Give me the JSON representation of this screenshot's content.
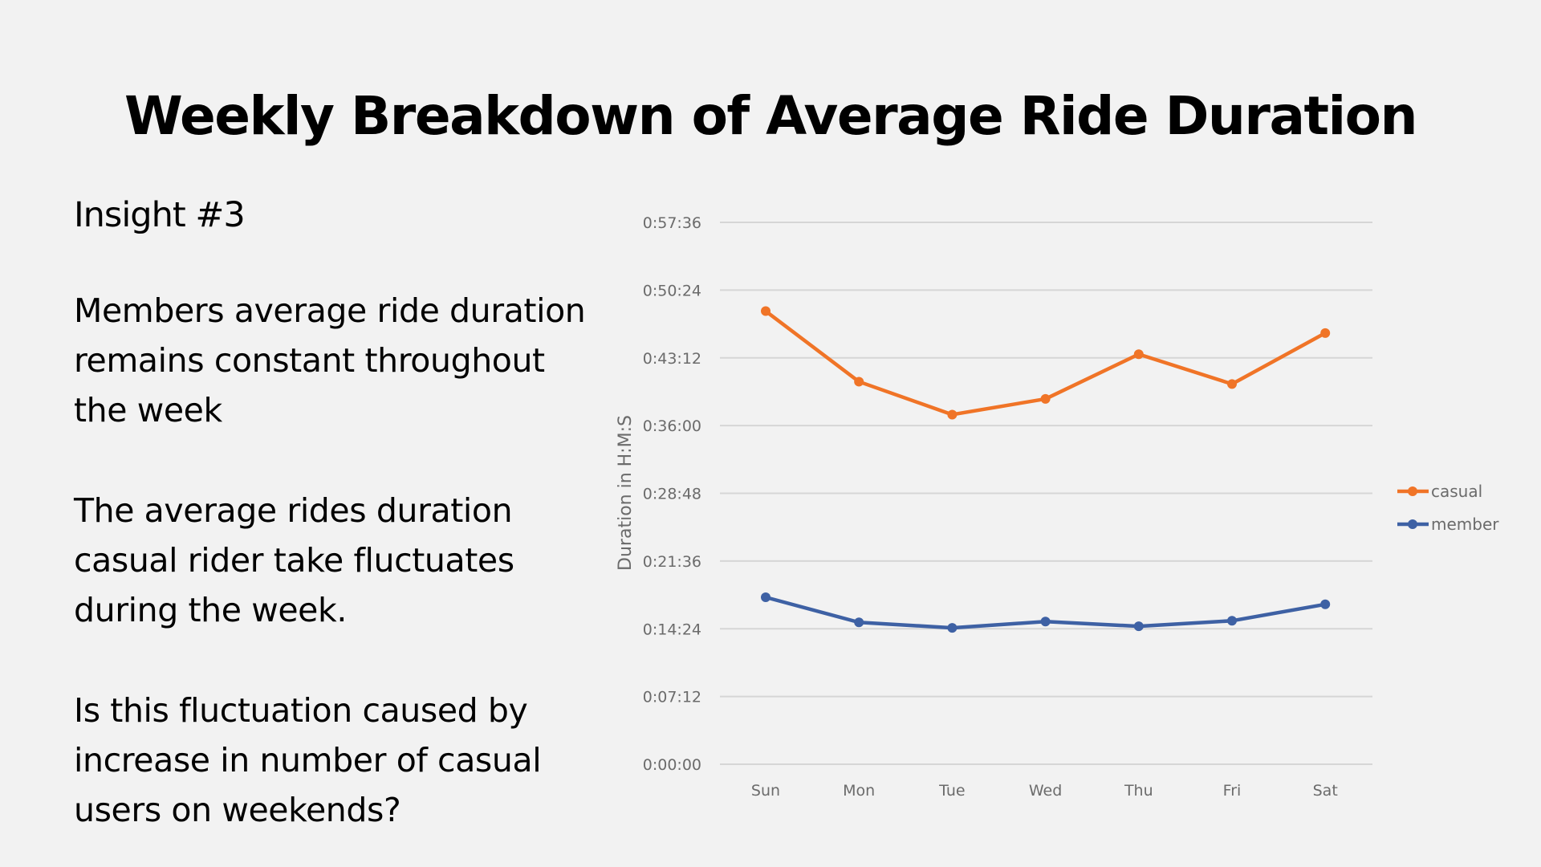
{
  "slide": {
    "title": "Weekly Breakdown of Average Ride Duration",
    "insight_heading": "Insight #3",
    "paragraphs": [
      "Members average ride duration remains constant throughout the week",
      "The average rides duration casual rider take fluctuates during the week.",
      "Is this fluctuation caused by increase in number of casual users on weekends?"
    ]
  },
  "chart_data": {
    "type": "line",
    "title": "",
    "xlabel": "",
    "ylabel": "Duration in H:M:S",
    "categories": [
      "Sun",
      "Mon",
      "Tue",
      "Wed",
      "Thu",
      "Fri",
      "Sat"
    ],
    "y_unit": "seconds",
    "ylim": [
      0,
      3456
    ],
    "y_ticks": [
      0,
      432,
      864,
      1296,
      1728,
      2160,
      2592,
      3024,
      3456
    ],
    "y_tick_labels": [
      "0:00:00",
      "0:07:12",
      "0:14:24",
      "0:21:36",
      "0:28:48",
      "0:36:00",
      "0:43:12",
      "0:50:24",
      "0:57:36"
    ],
    "grid": true,
    "legend_position": "right",
    "series": [
      {
        "name": "casual",
        "color": "#f07427",
        "values": [
          2890,
          2440,
          2230,
          2330,
          2615,
          2425,
          2750
        ]
      },
      {
        "name": "member",
        "color": "#3e61a4",
        "values": [
          1065,
          905,
          870,
          910,
          880,
          915,
          1020
        ]
      }
    ]
  }
}
